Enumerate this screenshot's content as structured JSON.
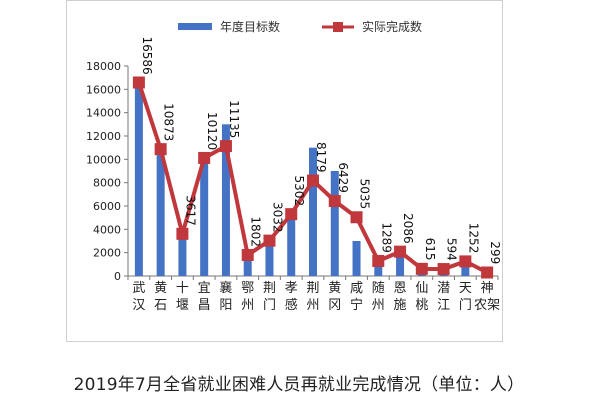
{
  "caption": "2019年7月全省就业困难人员再就业完成情况（单位：人）",
  "chart_data": {
    "type": "bar",
    "categories": [
      [
        "武",
        "汉"
      ],
      [
        "黄",
        "石"
      ],
      [
        "十",
        "堰"
      ],
      [
        "宜",
        "昌"
      ],
      [
        "襄",
        "阳"
      ],
      [
        "鄂",
        "州"
      ],
      [
        "荆",
        "门"
      ],
      [
        "孝",
        "感"
      ],
      [
        "荆",
        "州"
      ],
      [
        "黄",
        "冈"
      ],
      [
        "咸",
        "宁"
      ],
      [
        "随",
        "州"
      ],
      [
        "恩",
        "施"
      ],
      [
        "仙",
        "桃"
      ],
      [
        "潜",
        "江"
      ],
      [
        "天",
        "门"
      ],
      [
        "神",
        "农架"
      ]
    ],
    "series": [
      {
        "name": "年度目标数",
        "kind": "bar",
        "color": "#4472c4",
        "values": [
          16586,
          10873,
          3617,
          10120,
          13000,
          1802,
          3032,
          5302,
          11000,
          9000,
          3000,
          1289,
          2086,
          615,
          594,
          1252,
          299
        ]
      },
      {
        "name": "实际完成数",
        "kind": "line",
        "color": "#c0373c",
        "values": [
          16586,
          10873,
          3617,
          10120,
          11135,
          1802,
          3032,
          5302,
          8179,
          6429,
          5035,
          1289,
          2086,
          615,
          594,
          1252,
          299
        ],
        "labels": [
          "16586",
          "10873",
          "3617",
          "10120",
          "11135",
          "1802",
          "3032",
          "5302",
          "8179",
          "6429",
          "5035",
          "1289",
          "2086",
          "615",
          "594",
          "1252",
          "299"
        ]
      }
    ],
    "ylim": [
      0,
      18000
    ],
    "yticks": [
      "0",
      "2000",
      "4000",
      "6000",
      "8000",
      "10000",
      "12000",
      "14000",
      "16000",
      "18000"
    ],
    "grid": false,
    "legend": "top"
  }
}
